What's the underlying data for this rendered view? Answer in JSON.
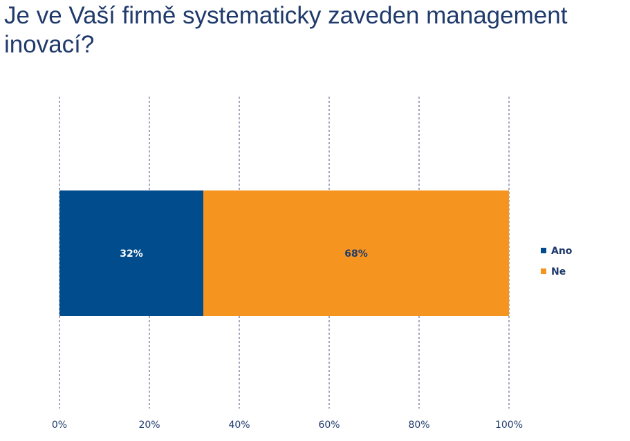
{
  "title": "Je ve Vaší firmě systematicky zaveden management inovací?",
  "chart_data": {
    "type": "bar",
    "orientation": "horizontal",
    "stacked": true,
    "title": "Je ve Vaší firmě systematicky zaveden management inovací?",
    "xlabel": "",
    "ylabel": "",
    "categories": [
      ""
    ],
    "xlim": [
      0,
      100
    ],
    "x_ticks": [
      "0%",
      "20%",
      "40%",
      "60%",
      "80%",
      "100%"
    ],
    "grid": "vertical dashed",
    "legend_position": "right",
    "series": [
      {
        "name": "Ano",
        "values": [
          32
        ],
        "label": "32%",
        "color": "#004c8c",
        "label_color": "#ffffff"
      },
      {
        "name": "Ne",
        "values": [
          68
        ],
        "label": "68%",
        "color": "#f5951f",
        "label_color": "#1f3a6b"
      }
    ]
  }
}
